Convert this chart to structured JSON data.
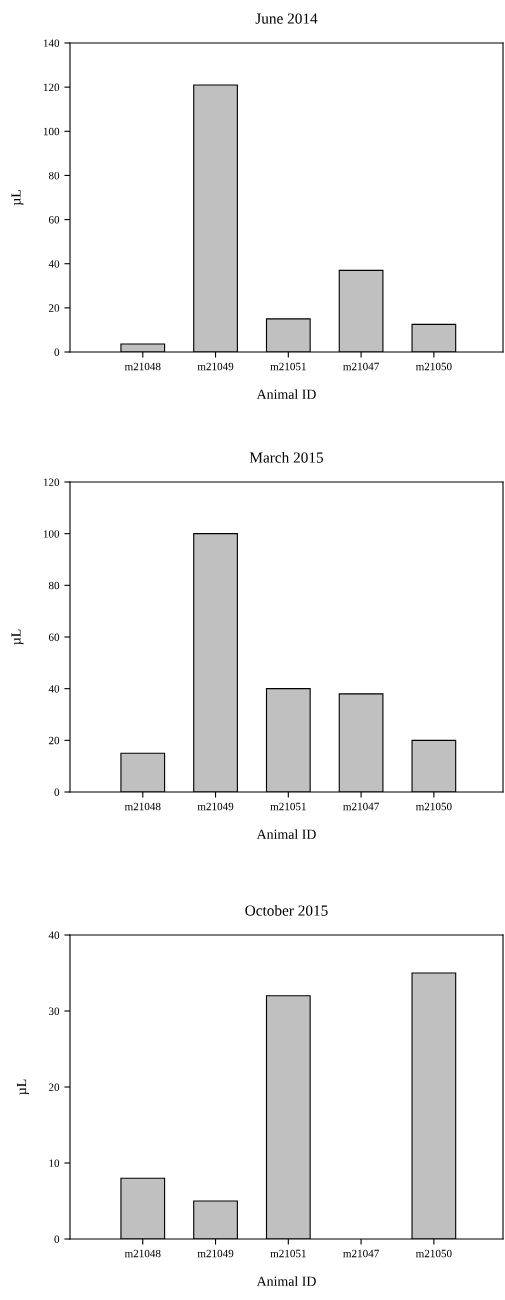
{
  "chart_data": [
    {
      "type": "bar",
      "title": "June 2014",
      "xlabel": "Animal ID",
      "ylabel": "µL",
      "categories": [
        "m21048",
        "m21049",
        "m21051",
        "m21047",
        "m21050"
      ],
      "values": [
        3.6,
        121,
        15,
        37,
        12.5
      ],
      "color": "#c0c0c0",
      "ylim": [
        0,
        140
      ],
      "yticks": [
        0,
        20,
        40,
        60,
        80,
        100,
        120,
        140
      ],
      "grid": false,
      "legend": false
    },
    {
      "type": "bar",
      "title": "March 2015",
      "xlabel": "Animal ID",
      "ylabel": "µL",
      "categories": [
        "m21048",
        "m21049",
        "m21051",
        "m21047",
        "m21050"
      ],
      "values": [
        15,
        100,
        40,
        38,
        20
      ],
      "color": "#c0c0c0",
      "ylim": [
        0,
        120
      ],
      "yticks": [
        0,
        20,
        40,
        60,
        80,
        100,
        120
      ],
      "grid": false,
      "legend": false
    },
    {
      "type": "bar",
      "title": "October 2015",
      "xlabel": "Animal ID",
      "ylabel": "µL",
      "categories": [
        "m21048",
        "m21049",
        "m21051",
        "m21047",
        "m21050"
      ],
      "values": [
        8,
        5,
        32,
        null,
        35
      ],
      "color": "#c0c0c0",
      "ylim": [
        0,
        40
      ],
      "yticks": [
        0,
        10,
        20,
        30,
        40
      ],
      "grid": false,
      "legend": false
    }
  ]
}
